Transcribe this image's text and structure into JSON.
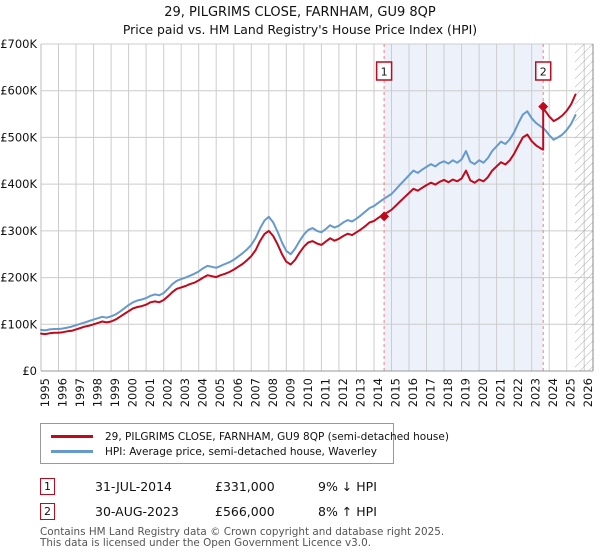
{
  "title": "29, PILGRIMS CLOSE, FARNHAM, GU9 8QP",
  "subtitle": "Price paid vs. HM Land Registry's House Price Index (HPI)",
  "chart_data": {
    "type": "line",
    "title": "29, PILGRIMS CLOSE, FARNHAM, GU9 8QP",
    "subtitle": "Price paid vs. HM Land Registry's House Price Index (HPI)",
    "x_axis": {
      "range": [
        1995,
        2026.5
      ],
      "ticks": [
        1995,
        1996,
        1997,
        1998,
        1999,
        2000,
        2001,
        2002,
        2003,
        2004,
        2005,
        2006,
        2007,
        2008,
        2009,
        2010,
        2011,
        2012,
        2013,
        2014,
        2015,
        2016,
        2017,
        2018,
        2019,
        2020,
        2021,
        2022,
        2023,
        2024,
        2025,
        2026
      ]
    },
    "y_axis": {
      "units": "GBP thousands",
      "range": [
        0,
        700
      ],
      "ticks": [
        {
          "value": 0,
          "label": "£0"
        },
        {
          "value": 100,
          "label": "£100K"
        },
        {
          "value": 200,
          "label": "£200K"
        },
        {
          "value": 300,
          "label": "£300K"
        },
        {
          "value": 400,
          "label": "£400K"
        },
        {
          "value": 500,
          "label": "£500K"
        },
        {
          "value": 600,
          "label": "£600K"
        },
        {
          "value": 700,
          "label": "£700K"
        }
      ]
    },
    "grid": true,
    "legend_position": "bottom-left",
    "shaded_span": {
      "from": 2014.58,
      "to": 2023.66
    },
    "hatch_span": {
      "from": 2025.47,
      "to": 2026.5
    },
    "colors": {
      "price_paid": "#bf0a1e",
      "hpi": "#6699cc",
      "dashed": "#f08080",
      "shade": "#edf2fa",
      "grid": "#cccccc",
      "sale": "#bf0a1e"
    },
    "series": [
      {
        "id": "hpi",
        "name": "HPI: Average price, semi-detached house, Waverley",
        "color": "#6699cc",
        "x_start": 1995,
        "x_step": 0.25,
        "values": [
          88,
          87,
          89,
          90,
          90,
          91,
          93,
          95,
          98,
          101,
          104,
          107,
          110,
          113,
          116,
          114,
          117,
          121,
          127,
          134,
          141,
          147,
          151,
          153,
          156,
          161,
          164,
          162,
          167,
          176,
          186,
          193,
          197,
          200,
          204,
          208,
          213,
          220,
          225,
          223,
          221,
          225,
          229,
          233,
          238,
          245,
          252,
          260,
          270,
          285,
          305,
          322,
          330,
          318,
          298,
          275,
          257,
          250,
          262,
          278,
          292,
          302,
          306,
          300,
          297,
          304,
          312,
          307,
          311,
          318,
          323,
          320,
          326,
          333,
          341,
          349,
          353,
          360,
          367,
          373,
          379,
          389,
          399,
          409,
          419,
          429,
          424,
          431,
          437,
          443,
          438,
          445,
          449,
          444,
          451,
          446,
          453,
          471,
          448,
          443,
          451,
          446,
          456,
          471,
          481,
          491,
          486,
          496,
          511,
          531,
          549,
          556,
          541,
          531,
          524,
          517,
          505,
          495,
          500,
          506,
          516,
          529,
          548
        ]
      },
      {
        "id": "price-paid-indexed",
        "name": "29, PILGRIMS CLOSE, FARNHAM, GU9 8QP (semi-detached house)",
        "color": "#bf0a1e",
        "x_start": 1995,
        "x_step": 0.25,
        "values": [
          80,
          79,
          81,
          82,
          82,
          83,
          85,
          86,
          89,
          92,
          95,
          97,
          100,
          103,
          106,
          104,
          106,
          110,
          116,
          122,
          128,
          134,
          137,
          139,
          142,
          147,
          149,
          147,
          152,
          160,
          169,
          176,
          179,
          182,
          186,
          189,
          194,
          200,
          205,
          203,
          201,
          205,
          208,
          212,
          217,
          223,
          229,
          237,
          246,
          259,
          278,
          293,
          300,
          289,
          271,
          250,
          234,
          228,
          238,
          253,
          266,
          275,
          278,
          273,
          270,
          277,
          284,
          279,
          283,
          289,
          294,
          291,
          297,
          303,
          310,
          318,
          321,
          328,
          334,
          339,
          345,
          354,
          363,
          372,
          381,
          390,
          386,
          392,
          398,
          403,
          399,
          405,
          409,
          404,
          410,
          406,
          412,
          429,
          408,
          403,
          410,
          406,
          415,
          429,
          438,
          447,
          442,
          451,
          465,
          483,
          500,
          506,
          492,
          483,
          477
        ]
      },
      {
        "id": "price-paid-post-sale",
        "name": "29, PILGRIMS CLOSE, FARNHAM, GU9 8QP (semi-detached house)",
        "color": "#bf0a1e",
        "x": [
          2023.5,
          2023.66,
          2023.66,
          2023.75,
          2024,
          2024.25,
          2024.5,
          2024.75,
          2025,
          2025.25,
          2025.5
        ],
        "values": [
          477,
          474,
          566,
          558,
          545,
          535,
          540,
          547,
          557,
          571,
          592
        ]
      }
    ],
    "sales": [
      {
        "label": "1",
        "x": 2014.58,
        "value": 331
      },
      {
        "label": "2",
        "x": 2023.66,
        "value": 566
      }
    ]
  },
  "legend": {
    "items": [
      {
        "label": "29, PILGRIMS CLOSE, FARNHAM, GU9 8QP (semi-detached house)",
        "color": "#bf0a1e"
      },
      {
        "label": "HPI: Average price, semi-detached house, Waverley",
        "color": "#6699cc"
      }
    ]
  },
  "transactions": [
    {
      "label": "1",
      "date": "31-JUL-2014",
      "price": "£331,000",
      "delta": "9% ↓ HPI"
    },
    {
      "label": "2",
      "date": "30-AUG-2023",
      "price": "£566,000",
      "delta": "8% ↑ HPI"
    }
  ],
  "footer": {
    "line1": "Contains HM Land Registry data © Crown copyright and database right 2025.",
    "line2": "This data is licensed under the Open Government Licence v3.0."
  }
}
